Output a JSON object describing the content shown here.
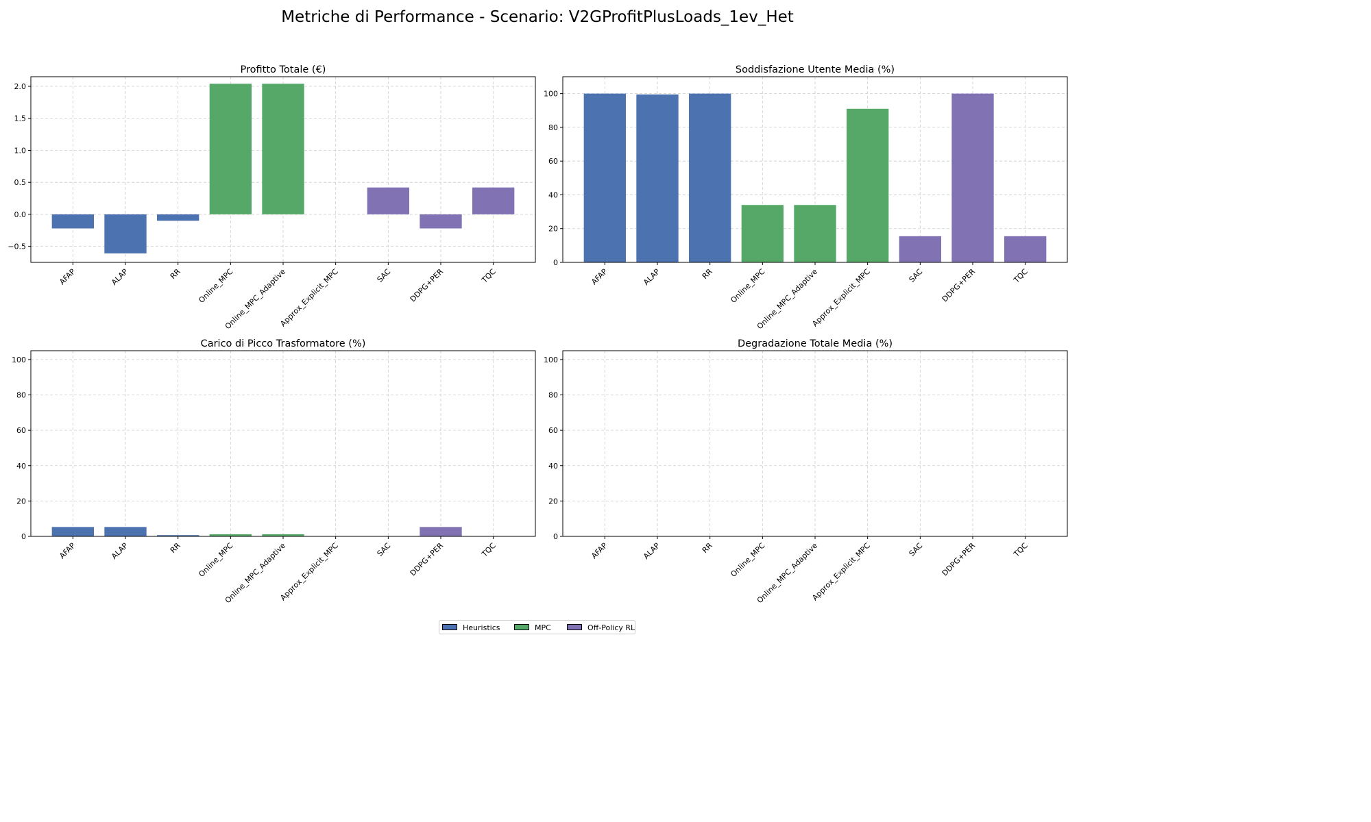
{
  "figure_title": "Metriche di Performance - Scenario: V2GProfitPlusLoads_1ev_Het",
  "legend": [
    {
      "label": "Heuristics",
      "color": "#4C72B0"
    },
    {
      "label": "MPC",
      "color": "#55A868"
    },
    {
      "label": "Off-Policy RL",
      "color": "#8172B3"
    }
  ],
  "chart_data": [
    {
      "type": "bar",
      "title": "Profitto Totale (€)",
      "categories": [
        "AFAP",
        "ALAP",
        "RR",
        "Online_MPC",
        "Online_MPC_Adaptive",
        "Approx_Explicit_MPC",
        "SAC",
        "DDPG+PER",
        "TQC"
      ],
      "values": [
        -0.22,
        -0.61,
        -0.1,
        2.04,
        2.04,
        0.0,
        0.42,
        -0.22,
        0.42
      ],
      "groups": [
        "Heuristics",
        "Heuristics",
        "Heuristics",
        "MPC",
        "MPC",
        "MPC",
        "Off-Policy RL",
        "Off-Policy RL",
        "Off-Policy RL"
      ],
      "ylim": [
        -0.75,
        2.15
      ],
      "yticks": [
        -0.5,
        0.0,
        0.5,
        1.0,
        1.5,
        2.0
      ],
      "ytick_labels": [
        "−0.5",
        "0.0",
        "0.5",
        "1.0",
        "1.5",
        "2.0"
      ],
      "grid": true
    },
    {
      "type": "bar",
      "title": "Soddisfazione Utente Media (%)",
      "categories": [
        "AFAP",
        "ALAP",
        "RR",
        "Online_MPC",
        "Online_MPC_Adaptive",
        "Approx_Explicit_MPC",
        "SAC",
        "DDPG+PER",
        "TQC"
      ],
      "values": [
        100,
        99.5,
        100,
        34,
        34,
        91,
        15.5,
        100,
        15.5
      ],
      "groups": [
        "Heuristics",
        "Heuristics",
        "Heuristics",
        "MPC",
        "MPC",
        "MPC",
        "Off-Policy RL",
        "Off-Policy RL",
        "Off-Policy RL"
      ],
      "ylim": [
        0,
        110
      ],
      "yticks": [
        0,
        20,
        40,
        60,
        80,
        100
      ],
      "ytick_labels": [
        "0",
        "20",
        "40",
        "60",
        "80",
        "100"
      ],
      "grid": true
    },
    {
      "type": "bar",
      "title": "Carico di Picco Trasformatore (%)",
      "categories": [
        "AFAP",
        "ALAP",
        "RR",
        "Online_MPC",
        "Online_MPC_Adaptive",
        "Approx_Explicit_MPC",
        "SAC",
        "DDPG+PER",
        "TQC"
      ],
      "values": [
        5.3,
        5.3,
        0.7,
        1.2,
        1.2,
        0,
        0,
        5.3,
        0
      ],
      "groups": [
        "Heuristics",
        "Heuristics",
        "Heuristics",
        "MPC",
        "MPC",
        "MPC",
        "Off-Policy RL",
        "Off-Policy RL",
        "Off-Policy RL"
      ],
      "ylim": [
        0,
        105
      ],
      "yticks": [
        0,
        20,
        40,
        60,
        80,
        100
      ],
      "ytick_labels": [
        "0",
        "20",
        "40",
        "60",
        "80",
        "100"
      ],
      "grid": true
    },
    {
      "type": "bar",
      "title": "Degradazione Totale Media (%)",
      "categories": [
        "AFAP",
        "ALAP",
        "RR",
        "Online_MPC",
        "Online_MPC_Adaptive",
        "Approx_Explicit_MPC",
        "SAC",
        "DDPG+PER",
        "TQC"
      ],
      "values": [
        0,
        0,
        0,
        0,
        0,
        0,
        0,
        0,
        0
      ],
      "groups": [
        "Heuristics",
        "Heuristics",
        "Heuristics",
        "MPC",
        "MPC",
        "MPC",
        "Off-Policy RL",
        "Off-Policy RL",
        "Off-Policy RL"
      ],
      "ylim": [
        0,
        105
      ],
      "yticks": [
        0,
        20,
        40,
        60,
        80,
        100
      ],
      "ytick_labels": [
        "0",
        "20",
        "40",
        "60",
        "80",
        "100"
      ],
      "grid": true
    }
  ]
}
